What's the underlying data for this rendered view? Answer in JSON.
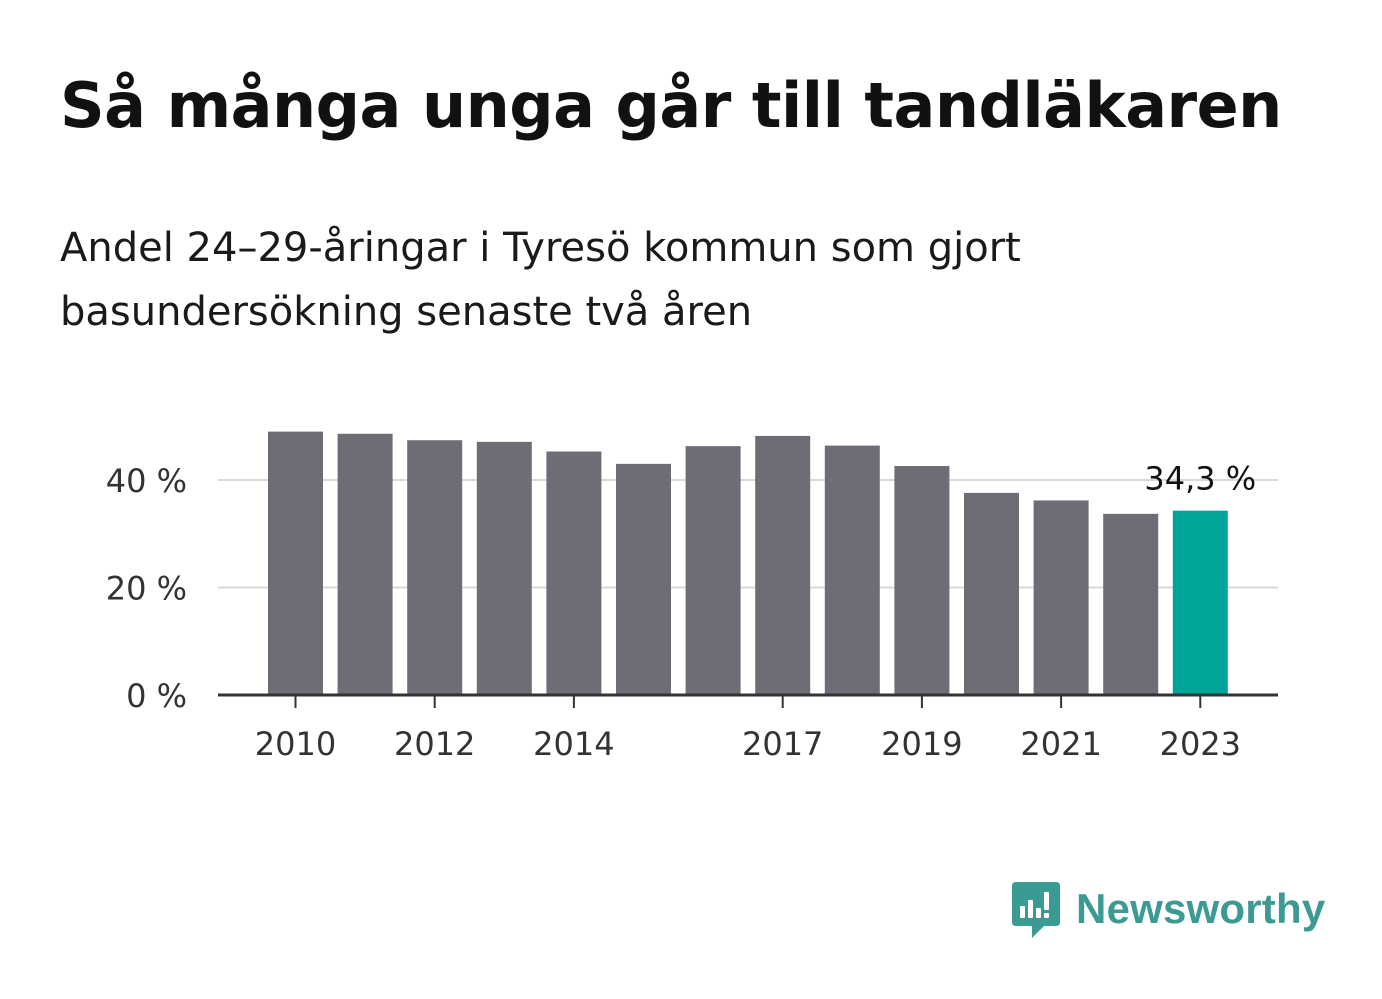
{
  "title": "Så många unga går till tandläkaren",
  "subtitle": "Andel 24–29-åringar i Tyresö kommun som gjort basundersökning senaste två åren",
  "brand": {
    "name": "Newsworthy",
    "color": "#3b9a92",
    "icon": "newsworthy-logo-icon"
  },
  "colors": {
    "bar": "#6e6d75",
    "highlight": "#00a59a",
    "grid": "#d9d9d9",
    "axis": "#333333",
    "text": "#333333"
  },
  "chart_data": {
    "type": "bar",
    "x": [
      2010,
      2011,
      2012,
      2013,
      2014,
      2015,
      2016,
      2017,
      2018,
      2019,
      2020,
      2021,
      2022,
      2023
    ],
    "values": [
      49.0,
      48.6,
      47.4,
      47.1,
      45.3,
      43.0,
      46.3,
      48.2,
      46.4,
      42.6,
      37.6,
      36.2,
      33.7,
      34.3
    ],
    "xtick_labels": [
      {
        "x": 2010,
        "label": "2010"
      },
      {
        "x": 2012,
        "label": "2012"
      },
      {
        "x": 2014,
        "label": "2014"
      },
      {
        "x": 2017,
        "label": "2017"
      },
      {
        "x": 2019,
        "label": "2019"
      },
      {
        "x": 2021,
        "label": "2021"
      },
      {
        "x": 2023,
        "label": "2023"
      }
    ],
    "yticks": [
      {
        "value": 0,
        "label": "0 %"
      },
      {
        "value": 20,
        "label": "20 %"
      },
      {
        "value": 40,
        "label": "40 %"
      }
    ],
    "ylim": [
      0,
      52
    ],
    "grid": true,
    "highlight_x": 2023,
    "annotation": {
      "x": 2023,
      "text": "34,3 %"
    }
  }
}
